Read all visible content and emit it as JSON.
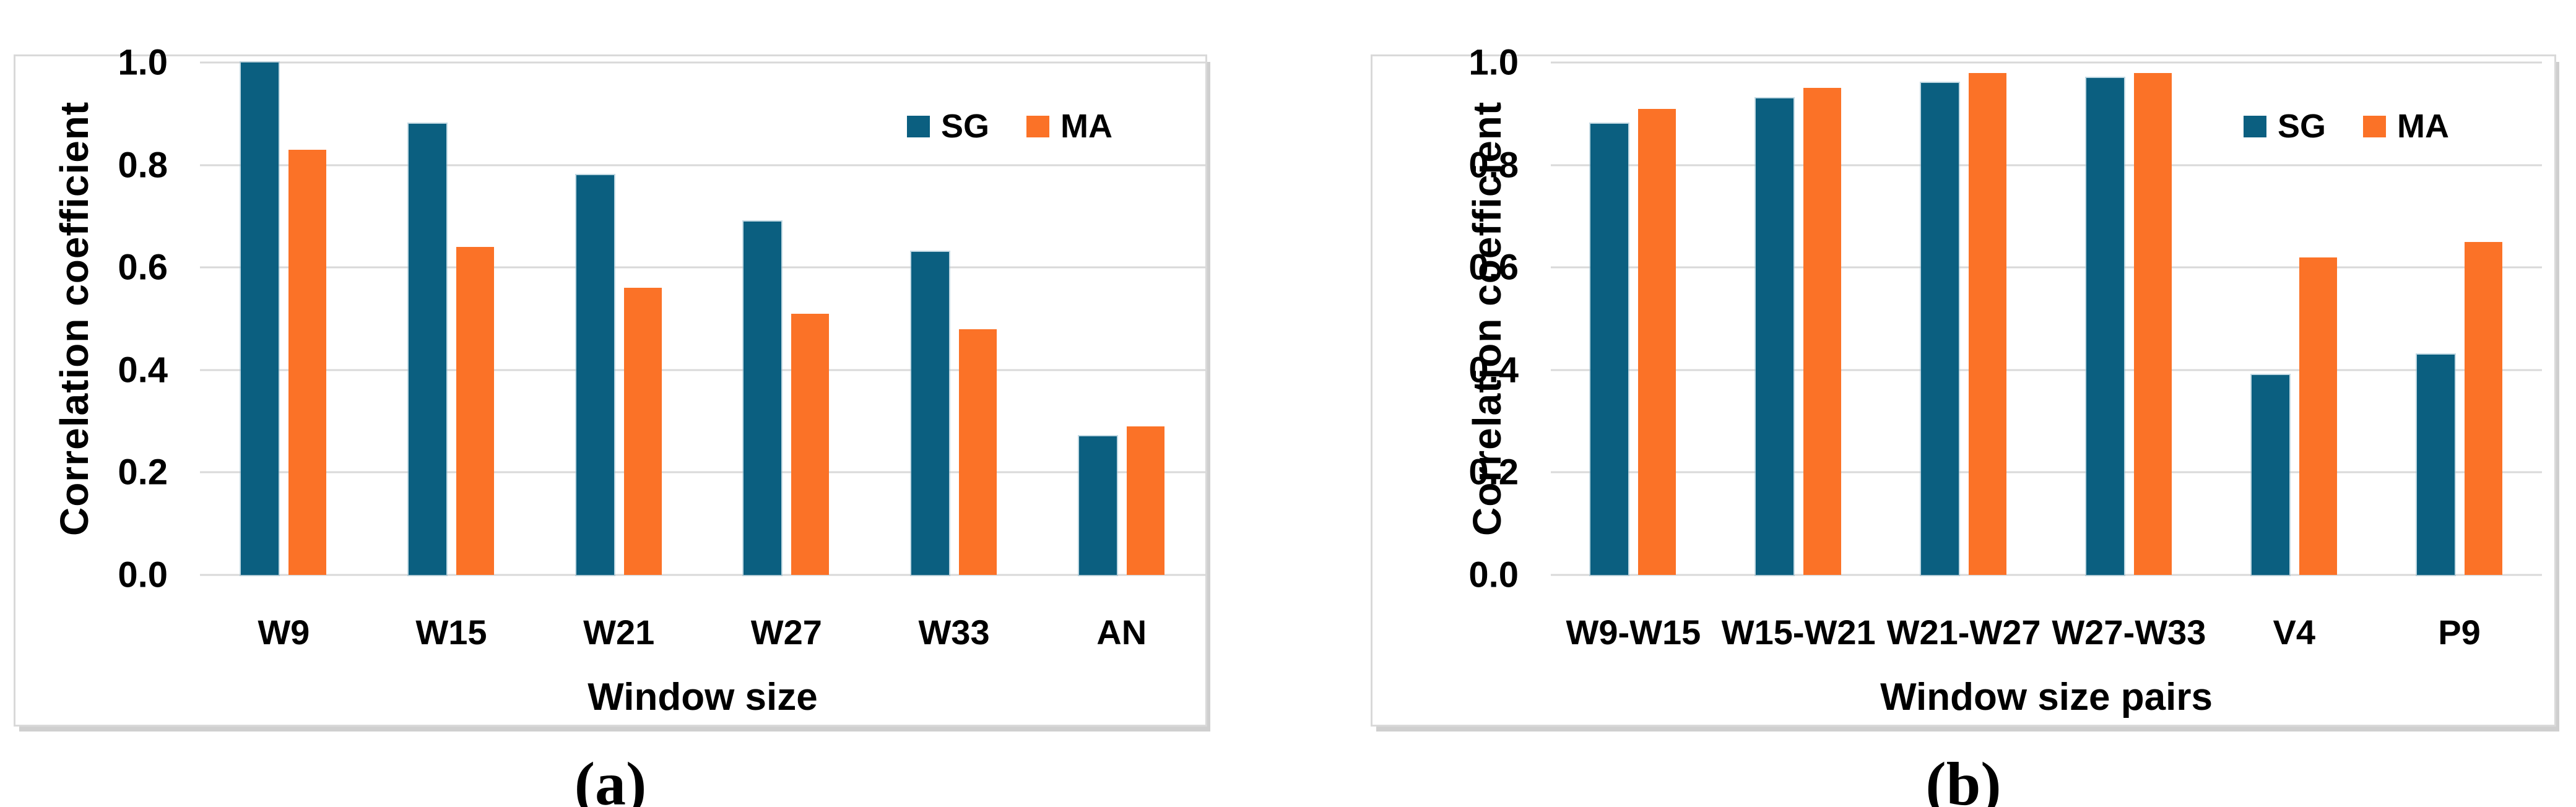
{
  "figure": {
    "description": "Two grouped bar charts comparing SG and MA correlation coefficients"
  },
  "colors": {
    "sg": "#0B5F80",
    "ma": "#FB7227",
    "gridline": "#D9D9D9",
    "panel_border": "#D9D9D9"
  },
  "chart_data": [
    {
      "type": "bar",
      "caption": "(a)",
      "ylabel": "Correlation coefficient",
      "xlabel": "Window size",
      "ylim": [
        0.0,
        1.0
      ],
      "grid": true,
      "legend_position": "top-right",
      "y_ticks": [
        "1.0",
        "0.8",
        "0.6",
        "0.4",
        "0.2",
        "0.0"
      ],
      "categories": [
        "W9",
        "W15",
        "W21",
        "W27",
        "W33",
        "AN"
      ],
      "series": [
        {
          "name": "SG",
          "color": "#0B5F80",
          "values": [
            1.0,
            0.88,
            0.78,
            0.69,
            0.63,
            0.27
          ]
        },
        {
          "name": "MA",
          "color": "#FB7227",
          "values": [
            0.83,
            0.64,
            0.56,
            0.51,
            0.48,
            0.29
          ]
        }
      ]
    },
    {
      "type": "bar",
      "caption": "(b)",
      "ylabel": "Correlation coefficient",
      "xlabel": "Window size pairs",
      "ylim": [
        0.0,
        1.0
      ],
      "grid": true,
      "legend_position": "top-right",
      "y_ticks": [
        "1.0",
        "0.8",
        "0.6",
        "0.4",
        "0.2",
        "0.0"
      ],
      "categories": [
        "W9-W15",
        "W15-W21",
        "W21-W27",
        "W27-W33",
        "V4",
        "P9"
      ],
      "series": [
        {
          "name": "SG",
          "color": "#0B5F80",
          "values": [
            0.88,
            0.93,
            0.96,
            0.97,
            0.39,
            0.43
          ]
        },
        {
          "name": "MA",
          "color": "#FB7227",
          "values": [
            0.91,
            0.95,
            0.98,
            0.98,
            0.62,
            0.65
          ]
        }
      ]
    }
  ]
}
